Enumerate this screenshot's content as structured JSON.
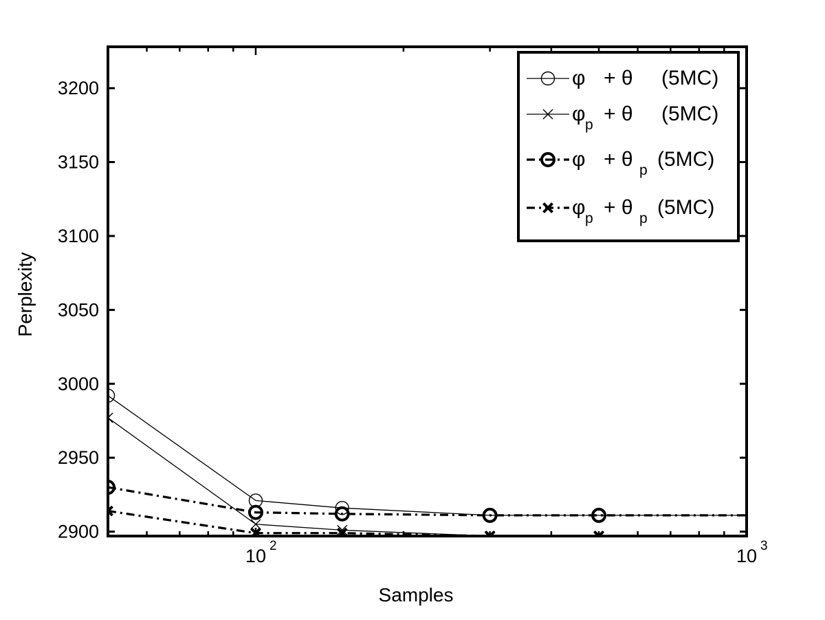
{
  "chart_data": {
    "type": "line",
    "title": "",
    "xlabel": "Samples",
    "ylabel": "Perplexity",
    "xscale": "log",
    "xlim": [
      50,
      1000
    ],
    "ylim": [
      2897,
      3228
    ],
    "x_ticks": [
      {
        "value": 100,
        "base": "10",
        "exp": "2"
      },
      {
        "value": 1000,
        "base": "10",
        "exp": "3"
      }
    ],
    "y_ticks": [
      2900,
      2950,
      3000,
      3050,
      3100,
      3150,
      3200
    ],
    "grid": false,
    "legend_position": "top-right",
    "series": [
      {
        "label": {
          "sym": "φ",
          "sub": "",
          "op": "+ θ",
          "sub2": "",
          "tail": "(5MC)"
        },
        "style": "solid",
        "marker": "circle",
        "bold": false,
        "color": "#000000",
        "x": [
          50,
          100,
          150,
          300,
          500,
          1000
        ],
        "y": [
          2992,
          2921,
          2916,
          2911,
          2911,
          2911
        ]
      },
      {
        "label": {
          "sym": "φ",
          "sub": "p",
          "op": "+ θ",
          "sub2": "",
          "tail": "(5MC)"
        },
        "style": "solid",
        "marker": "x",
        "bold": false,
        "color": "#000000",
        "x": [
          50,
          100,
          150,
          300,
          500,
          1000
        ],
        "y": [
          2977,
          2905,
          2901,
          2897,
          2897,
          2897
        ]
      },
      {
        "label": {
          "sym": "φ",
          "sub": "",
          "op": "+ θ",
          "sub2": "p",
          "tail": "(5MC)"
        },
        "style": "dashdot",
        "marker": "circle",
        "bold": true,
        "color": "#000000",
        "x": [
          50,
          100,
          150,
          300,
          500,
          1000
        ],
        "y": [
          2930,
          2913,
          2912,
          2911,
          2911,
          2911
        ]
      },
      {
        "label": {
          "sym": "φ",
          "sub": "p",
          "op": "+ θ",
          "sub2": "p",
          "tail": "(5MC)"
        },
        "style": "dashdot",
        "marker": "x",
        "bold": true,
        "color": "#000000",
        "x": [
          50,
          100,
          150,
          300,
          500,
          1000
        ],
        "y": [
          2914,
          2899,
          2899,
          2897,
          2897,
          2897
        ]
      }
    ]
  }
}
